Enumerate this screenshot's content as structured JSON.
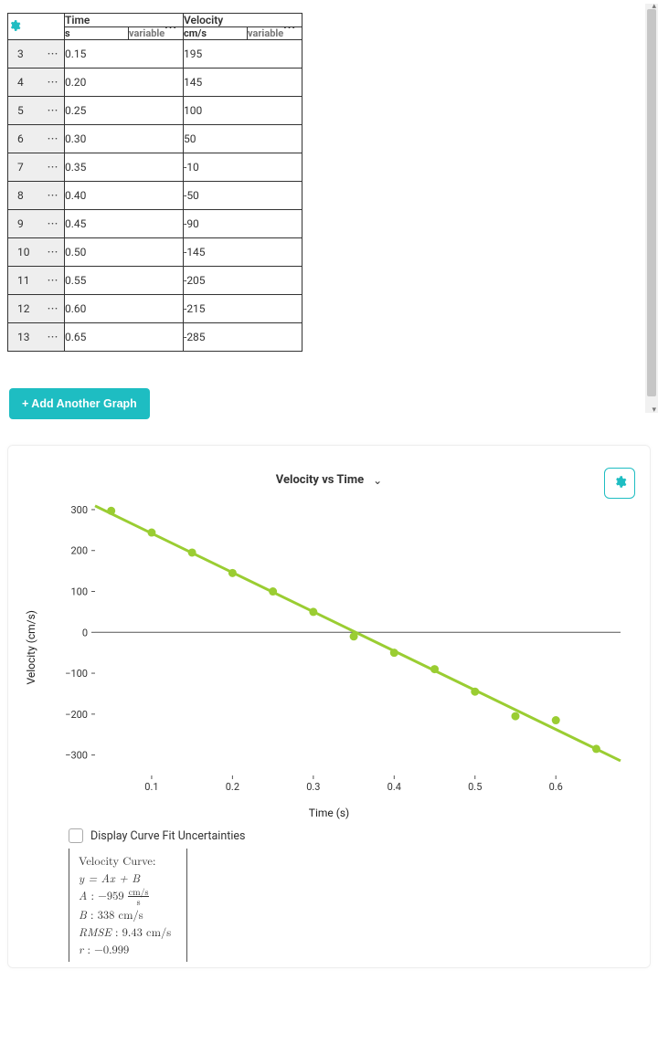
{
  "table": {
    "col1": {
      "label": "Time",
      "unit": "s",
      "vartag": "variable"
    },
    "col2": {
      "label": "Velocity",
      "unit": "cm/s",
      "vartag": "variable"
    },
    "rows": [
      {
        "n": "3",
        "time": "0.15",
        "vel": "195"
      },
      {
        "n": "4",
        "time": "0.20",
        "vel": "145"
      },
      {
        "n": "5",
        "time": "0.25",
        "vel": "100"
      },
      {
        "n": "6",
        "time": "0.30",
        "vel": "50"
      },
      {
        "n": "7",
        "time": "0.35",
        "vel": "-10"
      },
      {
        "n": "8",
        "time": "0.40",
        "vel": "-50"
      },
      {
        "n": "9",
        "time": "0.45",
        "vel": "-90"
      },
      {
        "n": "10",
        "time": "0.50",
        "vel": "-145"
      },
      {
        "n": "11",
        "time": "0.55",
        "vel": "-205"
      },
      {
        "n": "12",
        "time": "0.60",
        "vel": "-215"
      },
      {
        "n": "13",
        "time": "0.65",
        "vel": "-285"
      }
    ]
  },
  "add_graph_btn": "+ Add Another Graph",
  "accent_color": "#1ebdc2",
  "chart": {
    "title": "Velocity vs Time",
    "xlabel": "Time (s)",
    "ylabel": "Velocity (cm/s)",
    "type": "scatter-with-fit-line",
    "xlim": [
      0.03,
      0.68
    ],
    "ylim": [
      -350,
      320
    ],
    "xticks": [
      0.1,
      0.2,
      0.3,
      0.4,
      0.5,
      0.6
    ],
    "yticks": [
      -300,
      -200,
      -100,
      0,
      100,
      200,
      300
    ],
    "ytick_labels": [
      "−300",
      "−200",
      "−100",
      "0",
      "100",
      "200",
      "300"
    ],
    "point_color": "#9acd32",
    "line_color": "#9acd32",
    "line_width": 3,
    "marker_size": 4.5,
    "grid_color": "#555555",
    "background_color": "#ffffff",
    "axis_font_size": 11,
    "points": [
      {
        "x": 0.05,
        "y": 297
      },
      {
        "x": 0.1,
        "y": 244
      },
      {
        "x": 0.15,
        "y": 195
      },
      {
        "x": 0.2,
        "y": 145
      },
      {
        "x": 0.25,
        "y": 100
      },
      {
        "x": 0.3,
        "y": 50
      },
      {
        "x": 0.35,
        "y": -10
      },
      {
        "x": 0.4,
        "y": -50
      },
      {
        "x": 0.45,
        "y": -90
      },
      {
        "x": 0.5,
        "y": -145
      },
      {
        "x": 0.55,
        "y": -205
      },
      {
        "x": 0.6,
        "y": -215
      },
      {
        "x": 0.65,
        "y": -285
      }
    ],
    "fit_line": {
      "slope": -959,
      "intercept": 338
    }
  },
  "fit_checkbox_label": "Display Curve Fit Uncertainties",
  "fit_info": {
    "title": "Velocity Curve:",
    "eq": "y = Ax + B",
    "A_label": "A : ",
    "A_val": "−959",
    "A_unit_num": "cm/s",
    "A_unit_den": "s",
    "B_label": "B : ",
    "B_val": "338 cm/s",
    "RMSE_label": "RMSE : ",
    "RMSE_val": "9.43 cm/s",
    "r_label": "r : ",
    "r_val": "−0.999"
  }
}
